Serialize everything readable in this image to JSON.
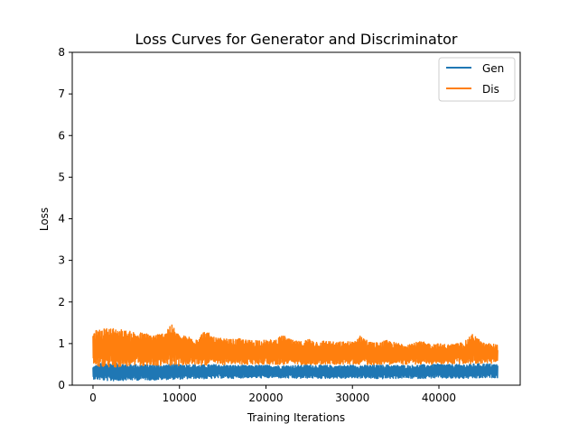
{
  "chart_data": {
    "type": "line",
    "title": "Loss Curves for Generator and Discriminator",
    "xlabel": "Training Iterations",
    "ylabel": "Loss",
    "xlim": [
      -2400,
      49400
    ],
    "ylim": [
      0,
      8
    ],
    "xticks": [
      0,
      10000,
      20000,
      30000,
      40000
    ],
    "yticks": [
      0,
      1,
      2,
      3,
      4,
      5,
      6,
      7,
      8
    ],
    "grid": false,
    "legend_position": "top-right",
    "series": [
      {
        "name": "Gen",
        "color": "#1f77b4",
        "x": [
          0,
          1000,
          2000,
          3000,
          4000,
          5000,
          6000,
          7000,
          8000,
          9000,
          10000,
          11000,
          12000,
          13000,
          14000,
          15000,
          16000,
          17000,
          18000,
          19000,
          20000,
          21000,
          22000,
          23000,
          24000,
          25000,
          26000,
          27000,
          28000,
          29000,
          30000,
          31000,
          32000,
          33000,
          34000,
          35000,
          36000,
          37000,
          38000,
          39000,
          40000,
          41000,
          42000,
          43000,
          44000,
          45000,
          46000,
          46800
        ],
        "y_upper": [
          0.45,
          0.55,
          0.53,
          0.52,
          0.51,
          0.5,
          0.49,
          0.5,
          0.49,
          0.5,
          0.5,
          0.5,
          0.49,
          0.49,
          0.5,
          0.49,
          0.48,
          0.48,
          0.47,
          0.48,
          0.48,
          0.48,
          0.47,
          0.48,
          0.48,
          0.49,
          0.48,
          0.48,
          0.47,
          0.48,
          0.48,
          0.48,
          0.48,
          0.48,
          0.49,
          0.48,
          0.48,
          0.48,
          0.49,
          0.5,
          0.51,
          0.5,
          0.5,
          0.5,
          0.51,
          0.52,
          0.51,
          0.5
        ],
        "y_lower": [
          0.15,
          0.12,
          0.1,
          0.11,
          0.12,
          0.12,
          0.13,
          0.12,
          0.13,
          0.14,
          0.14,
          0.15,
          0.16,
          0.15,
          0.16,
          0.17,
          0.16,
          0.17,
          0.18,
          0.17,
          0.17,
          0.18,
          0.17,
          0.16,
          0.16,
          0.17,
          0.16,
          0.16,
          0.17,
          0.16,
          0.17,
          0.17,
          0.16,
          0.15,
          0.16,
          0.16,
          0.17,
          0.16,
          0.16,
          0.17,
          0.17,
          0.16,
          0.16,
          0.16,
          0.16,
          0.17,
          0.18,
          0.18
        ]
      },
      {
        "name": "Dis",
        "color": "#ff7f0e",
        "x": [
          0,
          1000,
          2000,
          3000,
          4000,
          5000,
          6000,
          7000,
          8000,
          9000,
          10000,
          11000,
          12000,
          13000,
          14000,
          15000,
          16000,
          17000,
          18000,
          19000,
          20000,
          21000,
          22000,
          23000,
          24000,
          25000,
          26000,
          27000,
          28000,
          29000,
          30000,
          31000,
          32000,
          33000,
          34000,
          35000,
          36000,
          37000,
          38000,
          39000,
          40000,
          41000,
          42000,
          43000,
          44000,
          45000,
          46000,
          46800
        ],
        "y_upper": [
          1.3,
          1.35,
          1.38,
          1.36,
          1.3,
          1.28,
          1.25,
          1.22,
          1.25,
          1.48,
          1.2,
          1.18,
          1.15,
          1.32,
          1.15,
          1.12,
          1.1,
          1.12,
          1.08,
          1.1,
          1.08,
          1.1,
          1.2,
          1.08,
          1.05,
          1.12,
          1.05,
          1.08,
          1.03,
          1.05,
          1.05,
          1.2,
          1.04,
          1.02,
          1.08,
          1.02,
          1.0,
          1.02,
          1.05,
          1.0,
          1.0,
          0.98,
          1.0,
          1.05,
          1.25,
          1.02,
          1.0,
          0.98
        ],
        "y_lower": [
          0.5,
          0.42,
          0.42,
          0.44,
          0.45,
          0.46,
          0.47,
          0.46,
          0.47,
          0.48,
          0.47,
          0.48,
          0.49,
          0.48,
          0.49,
          0.49,
          0.5,
          0.5,
          0.49,
          0.5,
          0.5,
          0.5,
          0.49,
          0.5,
          0.5,
          0.5,
          0.49,
          0.5,
          0.5,
          0.5,
          0.5,
          0.5,
          0.49,
          0.5,
          0.5,
          0.5,
          0.5,
          0.5,
          0.5,
          0.5,
          0.51,
          0.51,
          0.51,
          0.51,
          0.51,
          0.52,
          0.52,
          0.52
        ]
      }
    ]
  }
}
